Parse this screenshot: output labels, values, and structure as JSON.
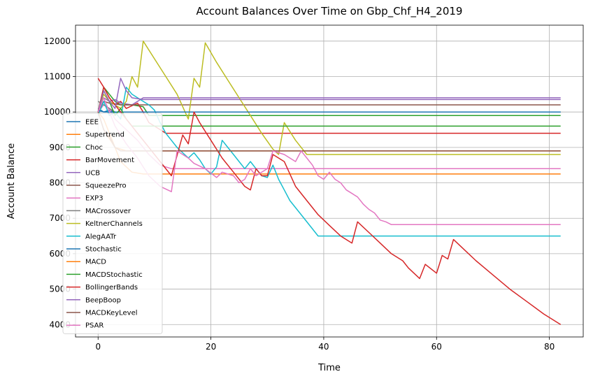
{
  "chart_data": {
    "type": "line",
    "title": "Account Balances Over Time on Gbp_Chf_H4_2019",
    "xlabel": "Time",
    "ylabel": "Account Balance",
    "xlim": [
      -4,
      86
    ],
    "ylim": [
      3650,
      12450
    ],
    "x_ticks": [
      0,
      20,
      40,
      60,
      80
    ],
    "y_ticks": [
      4000,
      5000,
      6000,
      7000,
      8000,
      9000,
      10000,
      11000,
      12000
    ],
    "grid": true,
    "legend_position": "left",
    "series": [
      {
        "name": "EEE",
        "color": "#1f77b4",
        "points": [
          [
            0,
            10100
          ],
          [
            1,
            10000
          ],
          [
            2,
            10050
          ],
          [
            3,
            10000
          ],
          [
            82,
            10000
          ]
        ]
      },
      {
        "name": "Supertrend",
        "color": "#ff7f0e",
        "points": [
          [
            0,
            10000
          ],
          [
            1,
            9800
          ],
          [
            2,
            9400
          ],
          [
            3,
            9000
          ],
          [
            4,
            8600
          ],
          [
            6,
            8300
          ],
          [
            8,
            8250
          ],
          [
            82,
            8250
          ]
        ]
      },
      {
        "name": "Choc",
        "color": "#2ca02c",
        "points": [
          [
            0,
            10000
          ],
          [
            1,
            10700
          ],
          [
            2,
            10500
          ],
          [
            3,
            10300
          ],
          [
            4,
            10200
          ],
          [
            6,
            10200
          ],
          [
            8,
            10150
          ],
          [
            9,
            9900
          ],
          [
            82,
            9900
          ]
        ]
      },
      {
        "name": "BarMovement",
        "color": "#d62728",
        "points": [
          [
            0,
            10950
          ],
          [
            1,
            10700
          ],
          [
            2,
            10400
          ],
          [
            3,
            10200
          ],
          [
            4,
            10300
          ],
          [
            5,
            10100
          ],
          [
            7,
            10250
          ],
          [
            8,
            10000
          ],
          [
            9,
            9700
          ],
          [
            10,
            9600
          ],
          [
            11,
            9500
          ],
          [
            12,
            9400
          ],
          [
            82,
            9400
          ]
        ]
      },
      {
        "name": "UCB",
        "color": "#9467bd",
        "points": [
          [
            0,
            10000
          ],
          [
            1,
            10400
          ],
          [
            2,
            10300
          ],
          [
            3,
            10350
          ],
          [
            4,
            10250
          ],
          [
            6,
            10200
          ],
          [
            8,
            10400
          ],
          [
            82,
            10400
          ]
        ]
      },
      {
        "name": "SqueezePro",
        "color": "#8c564b",
        "points": [
          [
            0,
            10000
          ],
          [
            1,
            10300
          ],
          [
            2,
            10250
          ],
          [
            4,
            10200
          ],
          [
            82,
            10200
          ]
        ]
      },
      {
        "name": "EXP3",
        "color": "#e377c2",
        "points": [
          [
            0,
            10000
          ],
          [
            1,
            10200
          ],
          [
            2,
            10100
          ],
          [
            3,
            9800
          ],
          [
            5,
            9500
          ],
          [
            7,
            9200
          ],
          [
            9,
            8800
          ],
          [
            11,
            8500
          ],
          [
            13,
            8400
          ],
          [
            82,
            8400
          ]
        ]
      },
      {
        "name": "MACrossover",
        "color": "#7f7f7f",
        "points": [
          [
            0,
            10300
          ],
          [
            1,
            10200
          ],
          [
            2,
            10100
          ],
          [
            3,
            10000
          ],
          [
            82,
            10000
          ]
        ]
      },
      {
        "name": "KeltnerChannels",
        "color": "#bcbd22",
        "points": [
          [
            0,
            10000
          ],
          [
            1,
            10500
          ],
          [
            2,
            10300
          ],
          [
            3,
            10200
          ],
          [
            4,
            10100
          ],
          [
            5,
            10300
          ],
          [
            6,
            11000
          ],
          [
            7,
            10700
          ],
          [
            8,
            12000
          ],
          [
            10,
            11500
          ],
          [
            12,
            11000
          ],
          [
            14,
            10500
          ],
          [
            16,
            9800
          ],
          [
            17,
            10950
          ],
          [
            18,
            10700
          ],
          [
            19,
            11950
          ],
          [
            21,
            11400
          ],
          [
            23,
            10900
          ],
          [
            25,
            10400
          ],
          [
            27,
            9900
          ],
          [
            29,
            9400
          ],
          [
            31,
            8950
          ],
          [
            32,
            8800
          ],
          [
            33,
            9700
          ],
          [
            35,
            9200
          ],
          [
            37,
            8800
          ],
          [
            82,
            8800
          ]
        ]
      },
      {
        "name": "AlegAATr",
        "color": "#17becf",
        "points": [
          [
            0,
            9900
          ],
          [
            1,
            10300
          ],
          [
            2,
            9900
          ],
          [
            3,
            10000
          ],
          [
            4,
            9800
          ],
          [
            5,
            10700
          ],
          [
            6,
            10500
          ],
          [
            7,
            10400
          ],
          [
            8,
            10300
          ],
          [
            9,
            10200
          ],
          [
            10,
            10050
          ],
          [
            11,
            9700
          ],
          [
            12,
            9400
          ],
          [
            13,
            9200
          ],
          [
            14,
            9000
          ],
          [
            15,
            8850
          ],
          [
            16,
            8700
          ],
          [
            17,
            8850
          ],
          [
            18,
            8650
          ],
          [
            19,
            8400
          ],
          [
            20,
            8250
          ],
          [
            21,
            8450
          ],
          [
            22,
            9200
          ],
          [
            23,
            9000
          ],
          [
            24,
            8800
          ],
          [
            25,
            8600
          ],
          [
            26,
            8400
          ],
          [
            27,
            8600
          ],
          [
            28,
            8400
          ],
          [
            29,
            8200
          ],
          [
            30,
            8150
          ],
          [
            31,
            8500
          ],
          [
            32,
            8100
          ],
          [
            33,
            7800
          ],
          [
            34,
            7500
          ],
          [
            36,
            7100
          ],
          [
            38,
            6700
          ],
          [
            39,
            6500
          ],
          [
            82,
            6500
          ]
        ]
      },
      {
        "name": "Stochastic",
        "color": "#1f77b4",
        "points": [
          [
            0,
            10050
          ],
          [
            1,
            10000
          ],
          [
            2,
            10000
          ],
          [
            82,
            10000
          ]
        ]
      },
      {
        "name": "MACD",
        "color": "#ff7f0e",
        "points": [
          [
            0,
            10000
          ],
          [
            1,
            9500
          ],
          [
            3,
            9000
          ],
          [
            5,
            8900
          ],
          [
            82,
            8900
          ]
        ]
      },
      {
        "name": "MACDStochastic",
        "color": "#2ca02c",
        "points": [
          [
            0,
            10000
          ],
          [
            1,
            10600
          ],
          [
            2,
            10300
          ],
          [
            3,
            9900
          ],
          [
            4,
            10100
          ],
          [
            5,
            9800
          ],
          [
            6,
            9600
          ],
          [
            82,
            9600
          ]
        ]
      },
      {
        "name": "BollingerBands",
        "color": "#d62728",
        "points": [
          [
            0,
            10000
          ],
          [
            1,
            10700
          ],
          [
            2,
            10400
          ],
          [
            3,
            10200
          ],
          [
            5,
            9800
          ],
          [
            7,
            9400
          ],
          [
            9,
            9000
          ],
          [
            11,
            8600
          ],
          [
            13,
            8200
          ],
          [
            15,
            9350
          ],
          [
            16,
            9100
          ],
          [
            17,
            10000
          ],
          [
            18,
            9700
          ],
          [
            20,
            9200
          ],
          [
            22,
            8700
          ],
          [
            24,
            8300
          ],
          [
            26,
            7900
          ],
          [
            27,
            7800
          ],
          [
            28,
            8400
          ],
          [
            29,
            8200
          ],
          [
            30,
            8200
          ],
          [
            31,
            8800
          ],
          [
            33,
            8600
          ],
          [
            35,
            7900
          ],
          [
            37,
            7500
          ],
          [
            39,
            7100
          ],
          [
            41,
            6800
          ],
          [
            43,
            6500
          ],
          [
            45,
            6300
          ],
          [
            46,
            6900
          ],
          [
            48,
            6600
          ],
          [
            50,
            6300
          ],
          [
            52,
            6000
          ],
          [
            54,
            5800
          ],
          [
            55,
            5600
          ],
          [
            57,
            5300
          ],
          [
            58,
            5700
          ],
          [
            60,
            5450
          ],
          [
            61,
            5950
          ],
          [
            62,
            5850
          ],
          [
            63,
            6400
          ],
          [
            65,
            6100
          ],
          [
            67,
            5800
          ],
          [
            70,
            5400
          ],
          [
            73,
            5000
          ],
          [
            76,
            4650
          ],
          [
            79,
            4300
          ],
          [
            82,
            4000
          ]
        ]
      },
      {
        "name": "BeepBoop",
        "color": "#9467bd",
        "points": [
          [
            0,
            10000
          ],
          [
            1,
            10600
          ],
          [
            2,
            10300
          ],
          [
            3,
            10100
          ],
          [
            4,
            10950
          ],
          [
            5,
            10600
          ],
          [
            6,
            10400
          ],
          [
            8,
            10350
          ],
          [
            82,
            10350
          ]
        ]
      },
      {
        "name": "MACDKeyLevel",
        "color": "#8c564b",
        "points": [
          [
            0,
            10000
          ],
          [
            1,
            9500
          ],
          [
            2,
            9300
          ],
          [
            3,
            9000
          ],
          [
            4,
            8900
          ],
          [
            82,
            8900
          ]
        ]
      },
      {
        "name": "PSAR",
        "color": "#e377c2",
        "points": [
          [
            0,
            10000
          ],
          [
            1,
            10400
          ],
          [
            2,
            10000
          ],
          [
            3,
            9600
          ],
          [
            5,
            9100
          ],
          [
            7,
            8700
          ],
          [
            9,
            8200
          ],
          [
            11,
            7900
          ],
          [
            13,
            7750
          ],
          [
            14,
            8900
          ],
          [
            15,
            8800
          ],
          [
            16,
            8700
          ],
          [
            17,
            8550
          ],
          [
            19,
            8400
          ],
          [
            21,
            8150
          ],
          [
            22,
            8300
          ],
          [
            24,
            8200
          ],
          [
            25,
            8000
          ],
          [
            26,
            8100
          ],
          [
            27,
            8400
          ],
          [
            28,
            8200
          ],
          [
            30,
            8400
          ],
          [
            31,
            8900
          ],
          [
            33,
            8800
          ],
          [
            35,
            8600
          ],
          [
            36,
            8900
          ],
          [
            38,
            8500
          ],
          [
            39,
            8200
          ],
          [
            40,
            8100
          ],
          [
            41,
            8300
          ],
          [
            42,
            8100
          ],
          [
            43,
            8000
          ],
          [
            44,
            7800
          ],
          [
            45,
            7700
          ],
          [
            46,
            7600
          ],
          [
            47,
            7400
          ],
          [
            48,
            7250
          ],
          [
            49,
            7150
          ],
          [
            50,
            6950
          ],
          [
            51,
            6900
          ],
          [
            52,
            6820
          ],
          [
            82,
            6820
          ]
        ]
      }
    ]
  }
}
